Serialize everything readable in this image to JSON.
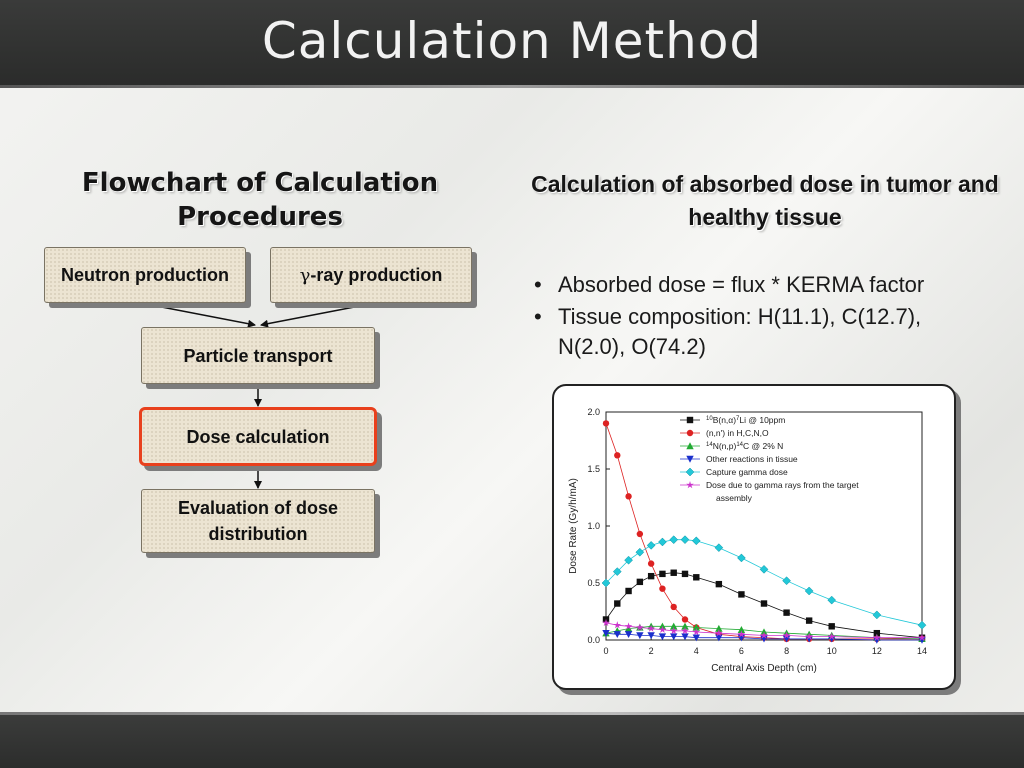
{
  "slide": {
    "title": "Calculation Method"
  },
  "left": {
    "heading": "Flowchart of Calculation Procedures",
    "boxes": {
      "neutron": "Neutron production",
      "gamma_symbol": "γ",
      "gamma_rest": "-ray production",
      "transport": "Particle transport",
      "dose": "Dose calculation",
      "evaluation": "Evaluation of dose distribution"
    }
  },
  "right": {
    "heading": "Calculation of absorbed dose in tumor and healthy tissue",
    "bullets": [
      "Absorbed dose = flux * KERMA factor",
      "Tissue composition: H(11.1), C(12.7), N(2.0), O(74.2)"
    ]
  },
  "colors": {
    "highlight": "#e8401c"
  },
  "chart_data": {
    "type": "line",
    "xlabel": "Central Axis Depth (cm)",
    "ylabel": "Dose Rate (Gy/h/mA)",
    "xlim": [
      0,
      14
    ],
    "ylim": [
      0,
      2.0
    ],
    "xticks": [
      "0",
      "2",
      "4",
      "6",
      "8",
      "10",
      "12",
      "14"
    ],
    "yticks": [
      "0.0",
      "0.5",
      "1.0",
      "1.5",
      "2.0"
    ],
    "legend_position": "top-right",
    "series": [
      {
        "label_parts": [
          [
            "sup",
            "10"
          ],
          [
            "t",
            "B(n,α)"
          ],
          [
            "sup",
            "7"
          ],
          [
            "t",
            "Li @ 10ppm"
          ]
        ],
        "color": "#111111",
        "marker": "square",
        "x": [
          0,
          0.5,
          1,
          1.5,
          2,
          2.5,
          3,
          3.5,
          4,
          5,
          6,
          7,
          8,
          9,
          10,
          12,
          14
        ],
        "y": [
          0.18,
          0.32,
          0.43,
          0.51,
          0.56,
          0.58,
          0.59,
          0.58,
          0.55,
          0.49,
          0.4,
          0.32,
          0.24,
          0.17,
          0.12,
          0.06,
          0.02
        ]
      },
      {
        "label_parts": [
          [
            "t",
            "(n,n') in H,C,N,O"
          ]
        ],
        "color": "#dd2222",
        "marker": "circle",
        "x": [
          0,
          0.5,
          1,
          1.5,
          2,
          2.5,
          3,
          3.5,
          4,
          5,
          6,
          7,
          8,
          9,
          10,
          12,
          14
        ],
        "y": [
          1.9,
          1.62,
          1.26,
          0.93,
          0.67,
          0.45,
          0.29,
          0.18,
          0.11,
          0.05,
          0.03,
          0.02,
          0.01,
          0.01,
          0.01,
          0.01,
          0.01
        ]
      },
      {
        "label_parts": [
          [
            "sup",
            "14"
          ],
          [
            "t",
            "N(n,p)"
          ],
          [
            "sup",
            "14"
          ],
          [
            "t",
            "C @ 2% N"
          ]
        ],
        "color": "#22aa33",
        "marker": "triangle-up",
        "x": [
          0,
          0.5,
          1,
          1.5,
          2,
          2.5,
          3,
          3.5,
          4,
          5,
          6,
          7,
          8,
          9,
          10,
          12,
          14
        ],
        "y": [
          0.06,
          0.08,
          0.1,
          0.11,
          0.12,
          0.12,
          0.12,
          0.12,
          0.11,
          0.1,
          0.09,
          0.07,
          0.06,
          0.05,
          0.04,
          0.02,
          0.01
        ]
      },
      {
        "label_parts": [
          [
            "t",
            "Other reactions in tissue"
          ]
        ],
        "color": "#1a2fcc",
        "marker": "triangle-down",
        "x": [
          0,
          0.5,
          1,
          1.5,
          2,
          2.5,
          3,
          3.5,
          4,
          5,
          6,
          7,
          8,
          9,
          10,
          12,
          14
        ],
        "y": [
          0.06,
          0.05,
          0.05,
          0.04,
          0.04,
          0.03,
          0.03,
          0.03,
          0.02,
          0.02,
          0.02,
          0.01,
          0.01,
          0.01,
          0.01,
          0.0,
          0.0
        ]
      },
      {
        "label_parts": [
          [
            "t",
            "Capture gamma dose"
          ]
        ],
        "color": "#22c8d8",
        "marker": "diamond",
        "x": [
          0,
          0.5,
          1,
          1.5,
          2,
          2.5,
          3,
          3.5,
          4,
          5,
          6,
          7,
          8,
          9,
          10,
          12,
          14
        ],
        "y": [
          0.5,
          0.6,
          0.7,
          0.77,
          0.83,
          0.86,
          0.88,
          0.88,
          0.87,
          0.81,
          0.72,
          0.62,
          0.52,
          0.43,
          0.35,
          0.22,
          0.13
        ]
      },
      {
        "label_parts": [
          [
            "t",
            "Dose due to gamma rays from the target"
          ],
          [
            "br",
            ""
          ],
          [
            "t",
            "assembly"
          ]
        ],
        "color": "#cc33cc",
        "marker": "star",
        "x": [
          0,
          0.5,
          1,
          1.5,
          2,
          2.5,
          3,
          3.5,
          4,
          5,
          6,
          7,
          8,
          9,
          10,
          12,
          14
        ],
        "y": [
          0.15,
          0.13,
          0.12,
          0.11,
          0.1,
          0.09,
          0.08,
          0.08,
          0.07,
          0.06,
          0.05,
          0.04,
          0.04,
          0.03,
          0.03,
          0.02,
          0.02
        ]
      }
    ]
  }
}
